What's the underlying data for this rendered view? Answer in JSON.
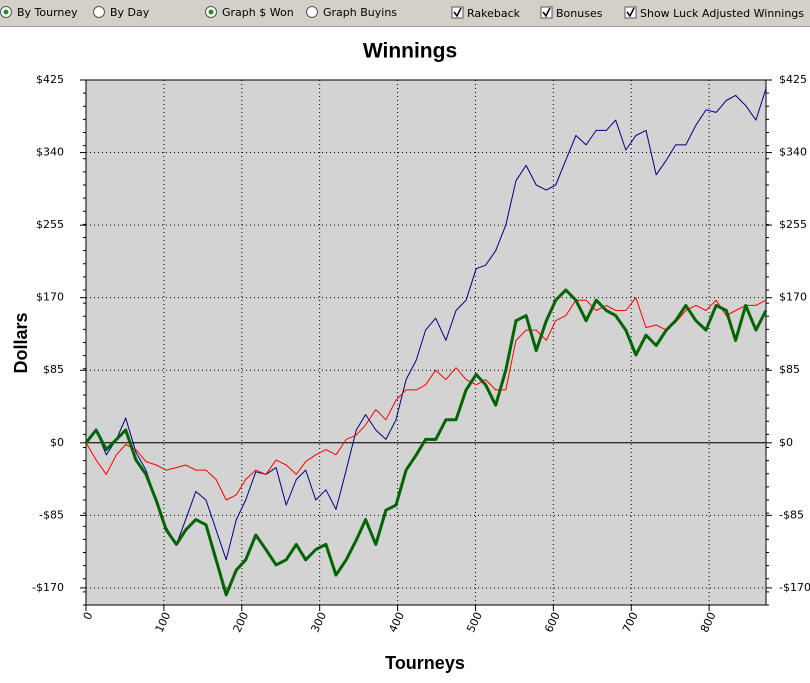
{
  "toolbar": {
    "radios": [
      {
        "label": "By Tourney",
        "checked": true
      },
      {
        "label": "By Day",
        "checked": false
      },
      {
        "label": "Graph $ Won",
        "checked": true
      },
      {
        "label": "Graph Buyins",
        "checked": false
      }
    ],
    "checkboxes": [
      {
        "label": "Rakeback",
        "checked": true
      },
      {
        "label": "Bonuses",
        "checked": true
      },
      {
        "label": "Show Luck Adjusted Winnings",
        "checked": true
      }
    ]
  },
  "chart_data": {
    "type": "line",
    "title": "Winnings",
    "x_label": "Tourneys",
    "y_label": "Dollars",
    "x": [
      0,
      13,
      26,
      39,
      51,
      64,
      77,
      90,
      103,
      116,
      128,
      141,
      154,
      167,
      180,
      193,
      205,
      218,
      231,
      244,
      257,
      270,
      282,
      295,
      308,
      321,
      334,
      347,
      359,
      372,
      385,
      398,
      411,
      424,
      436,
      449,
      462,
      475,
      488,
      501,
      513,
      526,
      539,
      552,
      565,
      578,
      591,
      603,
      616,
      629,
      642,
      655,
      668,
      680,
      693,
      706,
      719,
      732,
      745,
      757,
      770,
      783,
      796,
      809,
      822,
      834,
      847,
      860,
      873
    ],
    "series": [
      {
        "color": "#000080",
        "linewidth": 1,
        "values": [
          0,
          15,
          -14,
          4,
          29,
          -11,
          -32,
          -67,
          -99,
          -119,
          -90,
          -57,
          -67,
          -102,
          -137,
          -90,
          -67,
          -34,
          -37,
          -29,
          -73,
          -43,
          -32,
          -67,
          -55,
          -78,
          -32,
          15,
          33,
          15,
          4,
          27,
          74,
          97,
          132,
          146,
          120,
          155,
          167,
          204,
          208,
          225,
          255,
          307,
          325,
          302,
          296,
          302,
          331,
          360,
          349,
          366,
          366,
          378,
          343,
          360,
          366,
          314,
          331,
          349,
          349,
          372,
          390,
          387,
          401,
          407,
          395,
          378,
          415
        ]
      },
      {
        "color": "#ff0000",
        "linewidth": 1,
        "values": [
          0,
          -20,
          -37,
          -14,
          -2,
          -8,
          -22,
          -26,
          -32,
          -29,
          -26,
          -32,
          -32,
          -43,
          -67,
          -61,
          -43,
          -32,
          -37,
          -20,
          -26,
          -37,
          -22,
          -14,
          -8,
          -14,
          4,
          9,
          21,
          39,
          27,
          50,
          62,
          62,
          68,
          85,
          74,
          88,
          74,
          68,
          74,
          62,
          62,
          120,
          132,
          132,
          120,
          143,
          149,
          167,
          167,
          155,
          161,
          155,
          155,
          170,
          135,
          138,
          132,
          141,
          155,
          161,
          155,
          167,
          149,
          155,
          161,
          161,
          167
        ]
      },
      {
        "color": "#006400",
        "linewidth": 3,
        "values": [
          0,
          15,
          -8,
          4,
          15,
          -20,
          -37,
          -67,
          -102,
          -119,
          -102,
          -90,
          -96,
          -137,
          -178,
          -149,
          -137,
          -108,
          -125,
          -143,
          -137,
          -119,
          -137,
          -125,
          -119,
          -155,
          -137,
          -114,
          -90,
          -119,
          -79,
          -73,
          -32,
          -14,
          4,
          4,
          27,
          27,
          62,
          80,
          68,
          44,
          85,
          143,
          149,
          108,
          143,
          167,
          179,
          167,
          143,
          167,
          155,
          149,
          132,
          103,
          126,
          114,
          132,
          143,
          161,
          143,
          132,
          161,
          155,
          120,
          161,
          132,
          155
        ]
      }
    ],
    "xlim": [
      0,
      873
    ],
    "xticks": [
      0,
      100,
      200,
      300,
      400,
      500,
      600,
      700,
      800
    ],
    "ylim": [
      -190,
      425
    ],
    "yticks": [
      {
        "value": -170,
        "label": "-$170"
      },
      {
        "value": -85,
        "label": "-$85"
      },
      {
        "value": 0,
        "label": "$0"
      },
      {
        "value": 85,
        "label": "$85"
      },
      {
        "value": 170,
        "label": "$170"
      },
      {
        "value": 255,
        "label": "$255"
      },
      {
        "value": 340,
        "label": "$340"
      },
      {
        "value": 425,
        "label": "$425"
      }
    ],
    "grid": true,
    "background": "#d3d3d3"
  }
}
